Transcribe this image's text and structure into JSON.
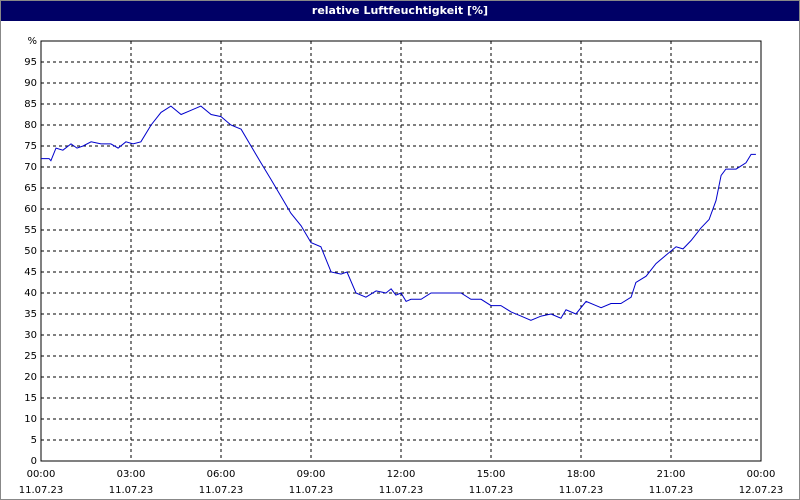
{
  "chart_data": {
    "type": "line",
    "title": "relative Luftfeuchtigkeit [%]",
    "x": [
      0,
      0.27,
      0.33,
      0.5,
      0.73,
      1,
      1.2,
      1.4,
      1.67,
      2,
      2.33,
      2.57,
      2.83,
      3.07,
      3.33,
      3.67,
      4,
      4.33,
      4.67,
      5,
      5.33,
      5.67,
      6,
      6.33,
      6.67,
      7,
      7.33,
      7.67,
      8,
      8.33,
      8.67,
      9,
      9.33,
      9.67,
      10,
      10.2,
      10.5,
      10.83,
      11.17,
      11.5,
      11.67,
      11.83,
      12,
      12.17,
      12.33,
      12.67,
      13,
      13.33,
      13.67,
      14,
      14.33,
      14.67,
      15,
      15.33,
      15.67,
      16,
      16.33,
      16.67,
      17,
      17.33,
      17.5,
      17.83,
      18.17,
      18.5,
      18.67,
      19,
      19.33,
      19.67,
      19.83,
      20.17,
      20.5,
      20.83,
      21.17,
      21.4,
      21.67,
      22,
      22.27,
      22.5,
      22.67,
      22.83,
      23.17,
      23.5,
      23.67,
      23.83
    ],
    "series": [
      {
        "color": "#0000cc",
        "values": [
          72,
          72,
          71.5,
          74.5,
          74,
          75.5,
          74.5,
          75,
          76,
          75.5,
          75.5,
          74.5,
          76,
          75.5,
          76,
          80,
          83,
          84.5,
          82.5,
          83.5,
          84.5,
          82.5,
          82,
          80,
          79,
          75,
          71,
          67,
          63,
          59,
          56,
          52,
          51,
          45,
          44.5,
          45,
          40,
          39,
          40.5,
          40,
          41,
          39.5,
          40,
          38,
          38.5,
          38.5,
          40,
          40,
          40,
          40,
          38.5,
          38.5,
          37,
          37,
          35.5,
          34.5,
          33.5,
          34.5,
          35,
          34,
          36,
          35,
          38,
          37,
          36.5,
          37.5,
          37.5,
          39,
          42.5,
          44,
          47,
          49,
          51,
          50.5,
          52.5,
          55.5,
          57.5,
          62,
          68,
          69.5,
          69.5,
          71,
          73,
          73
        ]
      }
    ],
    "xlim": [
      0,
      24
    ],
    "xticks": [
      {
        "value": 0,
        "label": "00:00",
        "date": "11.07.23"
      },
      {
        "value": 3,
        "label": "03:00",
        "date": "11.07.23"
      },
      {
        "value": 6,
        "label": "06:00",
        "date": "11.07.23"
      },
      {
        "value": 9,
        "label": "09:00",
        "date": "11.07.23"
      },
      {
        "value": 12,
        "label": "12:00",
        "date": "11.07.23"
      },
      {
        "value": 15,
        "label": "15:00",
        "date": "11.07.23"
      },
      {
        "value": 18,
        "label": "18:00",
        "date": "11.07.23"
      },
      {
        "value": 21,
        "label": "21:00",
        "date": "11.07.23"
      },
      {
        "value": 24,
        "label": "00:00",
        "date": "12.07.23"
      }
    ],
    "ylim": [
      0,
      100
    ],
    "yticks": [
      0,
      5,
      10,
      15,
      20,
      25,
      30,
      35,
      40,
      45,
      50,
      55,
      60,
      65,
      70,
      75,
      80,
      85,
      90,
      95,
      {
        "value": 100,
        "label": "%"
      }
    ],
    "grid": true
  }
}
